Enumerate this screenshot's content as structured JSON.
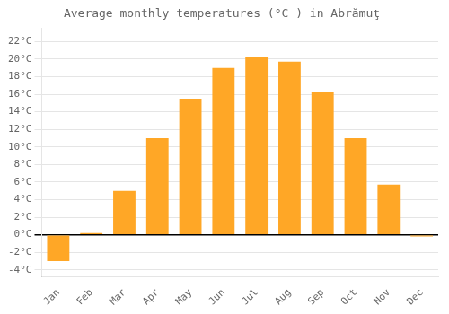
{
  "chart_data": {
    "type": "bar",
    "title": "Average monthly temperatures (°C ) in Abrămuţ",
    "categories": [
      "Jan",
      "Feb",
      "Mar",
      "Apr",
      "May",
      "Jun",
      "Jul",
      "Aug",
      "Sep",
      "Oct",
      "Nov",
      "Dec"
    ],
    "values": [
      -3.0,
      0.2,
      5.0,
      11.0,
      15.5,
      19.0,
      20.2,
      19.7,
      16.3,
      11.0,
      5.7,
      -0.2
    ],
    "color": "#FFA726",
    "ylim": [
      -4.8,
      23.5
    ],
    "yticks": [
      {
        "value": -4,
        "label": "-4°C"
      },
      {
        "value": -2,
        "label": "-2°C"
      },
      {
        "value": 0,
        "label": "0°C"
      },
      {
        "value": 2,
        "label": "2°C"
      },
      {
        "value": 4,
        "label": "4°C"
      },
      {
        "value": 6,
        "label": "6°C"
      },
      {
        "value": 8,
        "label": "8°C"
      },
      {
        "value": 10,
        "label": "10°C"
      },
      {
        "value": 12,
        "label": "12°C"
      },
      {
        "value": 14,
        "label": "14°C"
      },
      {
        "value": 16,
        "label": "16°C"
      },
      {
        "value": 18,
        "label": "18°C"
      },
      {
        "value": 20,
        "label": "20°C"
      },
      {
        "value": 22,
        "label": "22°C"
      }
    ],
    "grid": true
  }
}
